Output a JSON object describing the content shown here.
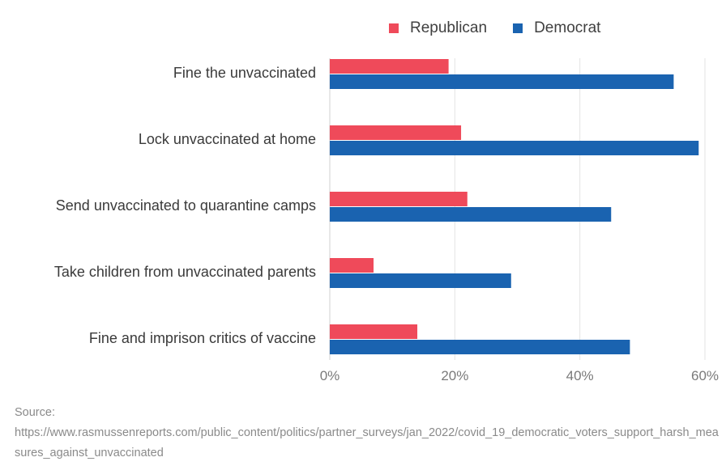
{
  "chart_data": {
    "type": "bar",
    "orientation": "horizontal",
    "categories": [
      "Fine the unvaccinated",
      "Lock unvaccinated at home",
      "Send unvaccinated to quarantine camps",
      "Take children from unvaccinated parents",
      "Fine and imprison critics of vaccine"
    ],
    "series": [
      {
        "name": "Republican",
        "color": "#ef4a5a",
        "values": [
          19,
          21,
          22,
          7,
          14
        ]
      },
      {
        "name": "Democrat",
        "color": "#1a63b0",
        "values": [
          55,
          59,
          45,
          29,
          48
        ]
      }
    ],
    "xlim": [
      0,
      60
    ],
    "xticks": [
      0,
      20,
      40,
      60
    ],
    "xtick_labels": [
      "0%",
      "20%",
      "40%",
      "60%"
    ],
    "grid": true,
    "legend_position": "top-right"
  },
  "source": {
    "label": "Source:",
    "url": "https://www.rasmussenreports.com/public_content/politics/partner_surveys/jan_2022/covid_19_democratic_voters_support_harsh_measures_against_unvaccinated"
  }
}
